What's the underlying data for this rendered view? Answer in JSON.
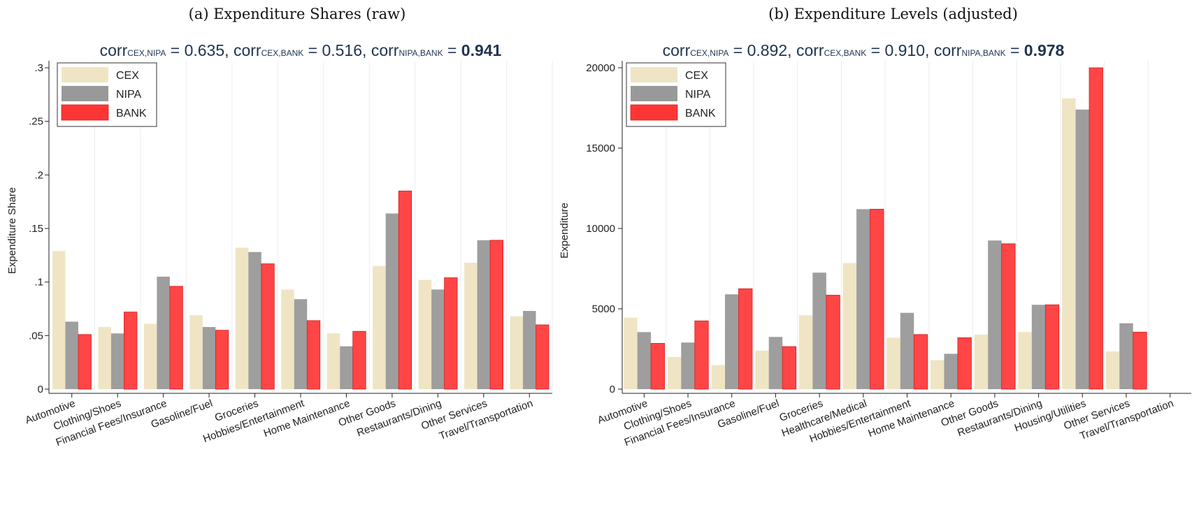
{
  "panels": [
    {
      "caption": "(a) Expenditure Shares (raw)",
      "corr_header": [
        {
          "text": "corr",
          "sub": "CEX,NIPA",
          "rest": " = 0.635, "
        },
        {
          "text": "corr",
          "sub": "CEX,BANK",
          "rest": " = 0.516, "
        },
        {
          "text": "corr",
          "sub": "NIPA,BANK",
          "rest": " = ",
          "bold": "0.941"
        }
      ]
    },
    {
      "caption": "(b) Expenditure Levels (adjusted)",
      "corr_header": [
        {
          "text": "corr",
          "sub": "CEX,NIPA",
          "rest": " = 0.892, "
        },
        {
          "text": "corr",
          "sub": "CEX,BANK",
          "rest": " = 0.910, "
        },
        {
          "text": "corr",
          "sub": "NIPA,BANK",
          "rest": " = ",
          "bold": "0.978"
        }
      ]
    }
  ],
  "colors": {
    "CEX": "#efe5c4",
    "NIPA": "#999999",
    "BANK": "#ff3535",
    "BANK_edge": "#d42020",
    "grid": "#e8eef2",
    "title": "#1f3450"
  },
  "chart_data": [
    {
      "type": "bar",
      "title": "corr CEX,NIPA = 0.635, corr CEX,BANK = 0.516, corr NIPA,BANK = 0.941",
      "ylabel": "Expenditure Share",
      "ylim": [
        0,
        0.3
      ],
      "yticks": [
        0,
        0.05,
        0.1,
        0.15,
        0.2,
        0.25,
        0.3
      ],
      "ytick_labels": [
        "0",
        ".05",
        ".1",
        ".15",
        ".2",
        ".25",
        ".3"
      ],
      "grid": "vertical",
      "legend": "top-left",
      "categories": [
        "Automotive",
        "Clothing/Shoes",
        "Financial Fees/Insurance",
        "Gasoline/Fuel",
        "Groceries",
        "Hobbies/Entertainment",
        "Home Maintenance",
        "Other Goods",
        "Restaurants/Dining",
        "Other Services",
        "Travel/Transportation"
      ],
      "series": [
        {
          "name": "CEX",
          "values": [
            0.129,
            0.058,
            0.061,
            0.069,
            0.132,
            0.093,
            0.052,
            0.115,
            0.102,
            0.118,
            0.068
          ]
        },
        {
          "name": "NIPA",
          "values": [
            0.063,
            0.052,
            0.105,
            0.058,
            0.128,
            0.084,
            0.04,
            0.164,
            0.093,
            0.139,
            0.073
          ]
        },
        {
          "name": "BANK",
          "values": [
            0.051,
            0.072,
            0.096,
            0.055,
            0.117,
            0.064,
            0.054,
            0.185,
            0.104,
            0.139,
            0.06
          ]
        }
      ]
    },
    {
      "type": "bar",
      "title": "corr CEX,NIPA = 0.892, corr CEX,BANK = 0.910, corr NIPA,BANK = 0.978",
      "ylabel": "Expenditure",
      "ylim": [
        0,
        20000
      ],
      "yticks": [
        0,
        5000,
        10000,
        15000,
        20000
      ],
      "ytick_labels": [
        "0",
        "5000",
        "10000",
        "15000",
        "20000"
      ],
      "grid": "vertical",
      "legend": "top-left",
      "categories": [
        "Automotive",
        "Clothing/Shoes",
        "Financial Fees/Insurance",
        "Gasoline/Fuel",
        "Groceries",
        "Healthcare/Medical",
        "Hobbies/Entertainment",
        "Home Maintenance",
        "Other Goods",
        "Restaurants/Dining",
        "Housing/Utilities",
        "Other Services",
        "Travel/Transportation"
      ],
      "series": [
        {
          "name": "CEX",
          "values": [
            4450,
            2000,
            1500,
            2400,
            4600,
            7850,
            3200,
            1800,
            3400,
            3550,
            18100,
            2350,
            0
          ]
        },
        {
          "name": "NIPA",
          "values": [
            3550,
            2900,
            5900,
            3250,
            7250,
            11200,
            4750,
            2200,
            9250,
            5250,
            17400,
            4100,
            0
          ]
        },
        {
          "name": "BANK",
          "values": [
            2850,
            4250,
            6250,
            2650,
            5850,
            11200,
            3400,
            3200,
            9050,
            5250,
            20000,
            3550,
            0
          ]
        }
      ]
    }
  ]
}
